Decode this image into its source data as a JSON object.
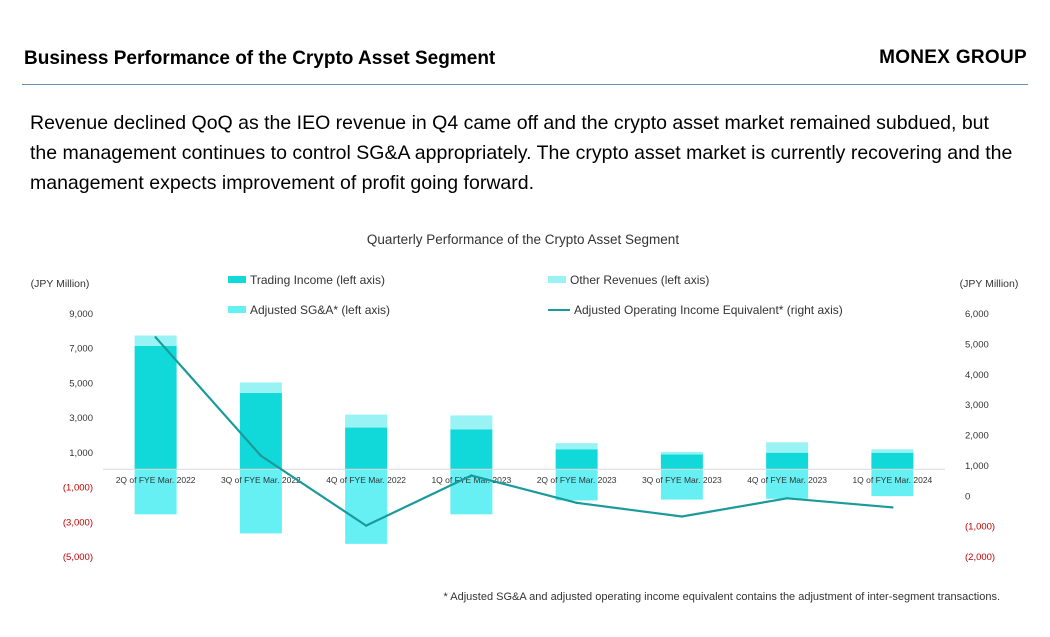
{
  "header": {
    "title": "Business Performance of the Crypto Asset Segment",
    "brand": "MONEX GROUP"
  },
  "lead": "Revenue declined QoQ as the IEO revenue in Q4 came off and the crypto asset market remained subdued, but the management continues to control SG&A appropriately. The crypto asset market is currently recovering and the management expects improvement of profit going forward.",
  "footnote": "* Adjusted SG&A and adjusted operating income equivalent contains the adjustment of inter-segment transactions.",
  "colors": {
    "trading": "#12d9d9",
    "other": "#99f2f4",
    "sga": "#66f0f4",
    "line": "#1a9a9a",
    "negative": "#c00000"
  },
  "chart_data": {
    "type": "bar",
    "title": "Quarterly Performance of the Crypto Asset Segment",
    "left_unit": "(JPY Million)",
    "right_unit": "(JPY Million)",
    "left_ticks": [
      "9,000",
      "7,000",
      "5,000",
      "3,000",
      "1,000",
      "(1,000)",
      "(3,000)",
      "(5,000)"
    ],
    "right_ticks": [
      "6,000",
      "5,000",
      "4,000",
      "3,000",
      "2,000",
      "1,000",
      "0",
      "(1,000)",
      "(2,000)"
    ],
    "left_ylim": [
      -5000,
      9000
    ],
    "right_ylim": [
      -2000,
      6000
    ],
    "categories": [
      "2Q of FYE Mar. 2022",
      "3Q of FYE Mar. 2022",
      "4Q of FYE Mar. 2022",
      "1Q of FYE Mar. 2023",
      "2Q of FYE Mar. 2023",
      "3Q of FYE Mar. 2023",
      "4Q of FYE Mar. 2023",
      "1Q of FYE Mar. 2024"
    ],
    "legend": [
      "Trading Income (left axis)",
      "Other Revenues (left axis)",
      "Adjusted SG&A* (left axis)",
      "Adjusted Operating Income Equivalent* (right axis)"
    ],
    "series": [
      {
        "name": "Trading Income (left axis)",
        "axis": "left",
        "kind": "bar",
        "values": [
          7100,
          4400,
          2400,
          2300,
          1150,
          850,
          950,
          950
        ]
      },
      {
        "name": "Other Revenues (left axis)",
        "axis": "left",
        "kind": "bar",
        "values": [
          600,
          600,
          750,
          800,
          350,
          150,
          600,
          200
        ]
      },
      {
        "name": "Adjusted SG&A* (left axis)",
        "axis": "left",
        "kind": "bar",
        "values": [
          -2600,
          -3700,
          -4300,
          -2600,
          -1800,
          -1750,
          -1700,
          -1550
        ]
      },
      {
        "name": "Adjusted Operating Income Equivalent* (right axis)",
        "axis": "right",
        "kind": "line",
        "values": [
          5200,
          1300,
          -1000,
          650,
          -250,
          -700,
          -100,
          -400
        ]
      }
    ]
  }
}
